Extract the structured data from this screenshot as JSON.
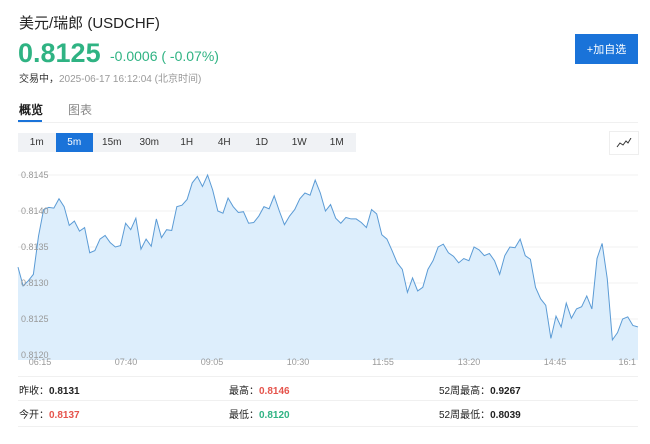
{
  "header": {
    "title": "美元/瑞郎 (USDCHF)",
    "price": "0.8125",
    "change": "-0.0006 ( -0.07%)",
    "status_label": "交易中，",
    "timestamp": "2025-06-17 16:12:04 (北京时间)",
    "add_watchlist": "+加自选"
  },
  "colors": {
    "up": "#e5534b",
    "down": "#2fb383",
    "accent": "#1a73d9",
    "line": "#5b9bd5",
    "fill": "#ddeefc"
  },
  "tabs": [
    {
      "label": "概览",
      "active": true
    },
    {
      "label": "图表",
      "active": false
    }
  ],
  "periods": [
    {
      "label": "1m"
    },
    {
      "label": "5m",
      "active": true
    },
    {
      "label": "15m"
    },
    {
      "label": "30m"
    },
    {
      "label": "1H"
    },
    {
      "label": "4H"
    },
    {
      "label": "1D"
    },
    {
      "label": "1W"
    },
    {
      "label": "1M"
    }
  ],
  "chart_type_icon": "line-chart-icon",
  "chart_data": {
    "type": "area",
    "ylim": [
      0.812,
      0.8146
    ],
    "y_ticks": [
      "0.8120",
      "0.8125",
      "0.8130",
      "0.8135",
      "0.8140",
      "0.8145"
    ],
    "x_ticks": [
      "06:15",
      "07:40",
      "09:05",
      "10:30",
      "11:55",
      "13:20",
      "14:45",
      "16:1"
    ],
    "grid": true,
    "times": [
      "05:45",
      "05:50",
      "05:55",
      "06:00",
      "06:05",
      "06:10",
      "06:15",
      "06:20",
      "06:25",
      "06:30",
      "06:35",
      "06:40",
      "06:45",
      "06:50",
      "06:55",
      "07:00",
      "07:05",
      "07:10",
      "07:15",
      "07:20",
      "07:25",
      "07:30",
      "07:35",
      "07:40",
      "07:45",
      "07:50",
      "07:55",
      "08:00",
      "08:05",
      "08:10",
      "08:15",
      "08:20",
      "08:25",
      "08:30",
      "08:35",
      "08:40",
      "08:45",
      "08:50",
      "08:55",
      "09:00",
      "09:05",
      "09:10",
      "09:15",
      "09:20",
      "09:25",
      "09:30",
      "09:35",
      "09:40",
      "09:45",
      "09:50",
      "09:55",
      "10:00",
      "10:05",
      "10:10",
      "10:15",
      "10:20",
      "10:25",
      "10:30",
      "10:35",
      "10:40",
      "10:45",
      "10:50",
      "10:55",
      "11:00",
      "11:05",
      "11:10",
      "11:15",
      "11:20",
      "11:25",
      "11:30",
      "11:35",
      "11:40",
      "11:45",
      "11:50",
      "11:55",
      "12:00",
      "12:05",
      "12:10",
      "12:15",
      "12:20",
      "12:25",
      "12:30",
      "12:35",
      "12:40",
      "12:45",
      "12:50",
      "12:55",
      "13:00",
      "13:05",
      "13:10",
      "13:15",
      "13:20",
      "13:25",
      "13:30",
      "13:35",
      "13:40",
      "13:45",
      "13:50",
      "13:55",
      "14:00",
      "14:05",
      "14:10",
      "14:15",
      "14:20",
      "14:25",
      "14:30",
      "14:35",
      "14:40",
      "14:45",
      "14:50",
      "14:55",
      "15:00",
      "15:05",
      "15:10",
      "15:15",
      "15:20",
      "15:25",
      "15:30",
      "15:35",
      "15:40",
      "15:45",
      "15:50"
    ],
    "values": [
      0.81322,
      0.81296,
      0.81303,
      0.81312,
      0.81365,
      0.81402,
      0.81405,
      0.81404,
      0.81417,
      0.81406,
      0.8138,
      0.81386,
      0.81372,
      0.81377,
      0.81342,
      0.81345,
      0.81361,
      0.81366,
      0.81356,
      0.8135,
      0.81352,
      0.81383,
      0.81374,
      0.8139,
      0.81347,
      0.81361,
      0.81351,
      0.81389,
      0.81363,
      0.81374,
      0.81373,
      0.81406,
      0.81408,
      0.81416,
      0.81439,
      0.81448,
      0.81434,
      0.8145,
      0.81429,
      0.814,
      0.81397,
      0.81418,
      0.81406,
      0.81398,
      0.81399,
      0.81383,
      0.81384,
      0.81393,
      0.81406,
      0.81403,
      0.81421,
      0.814,
      0.81381,
      0.81393,
      0.81402,
      0.81417,
      0.81425,
      0.81422,
      0.81443,
      0.81425,
      0.814,
      0.81409,
      0.8139,
      0.81383,
      0.81391,
      0.81389,
      0.81389,
      0.81384,
      0.81377,
      0.81402,
      0.81396,
      0.81367,
      0.81361,
      0.81345,
      0.81328,
      0.81319,
      0.81287,
      0.81307,
      0.81289,
      0.81294,
      0.81319,
      0.81331,
      0.8135,
      0.81354,
      0.81342,
      0.81337,
      0.81328,
      0.81334,
      0.81331,
      0.8135,
      0.81346,
      0.81338,
      0.81341,
      0.81331,
      0.81312,
      0.81338,
      0.8135,
      0.81349,
      0.81361,
      0.81338,
      0.81333,
      0.81294,
      0.81278,
      0.81269,
      0.81223,
      0.81254,
      0.81239,
      0.81272,
      0.81251,
      0.81264,
      0.81267,
      0.81282,
      0.81264,
      0.81334,
      0.81355,
      0.81306,
      0.81221,
      0.81231,
      0.8125,
      0.81253,
      0.81241,
      0.81239
    ]
  },
  "stats": [
    {
      "label": "昨收：",
      "value": "0.8131",
      "color": "normal"
    },
    {
      "label": "最高：",
      "value": "0.8146",
      "color": "up"
    },
    {
      "label": "52周最高：",
      "value": "0.9267",
      "color": "normal"
    },
    {
      "label": "今开：",
      "value": "0.8137",
      "color": "up"
    },
    {
      "label": "最低：",
      "value": "0.8120",
      "color": "down"
    },
    {
      "label": "52周最低：",
      "value": "0.8039",
      "color": "normal"
    }
  ]
}
